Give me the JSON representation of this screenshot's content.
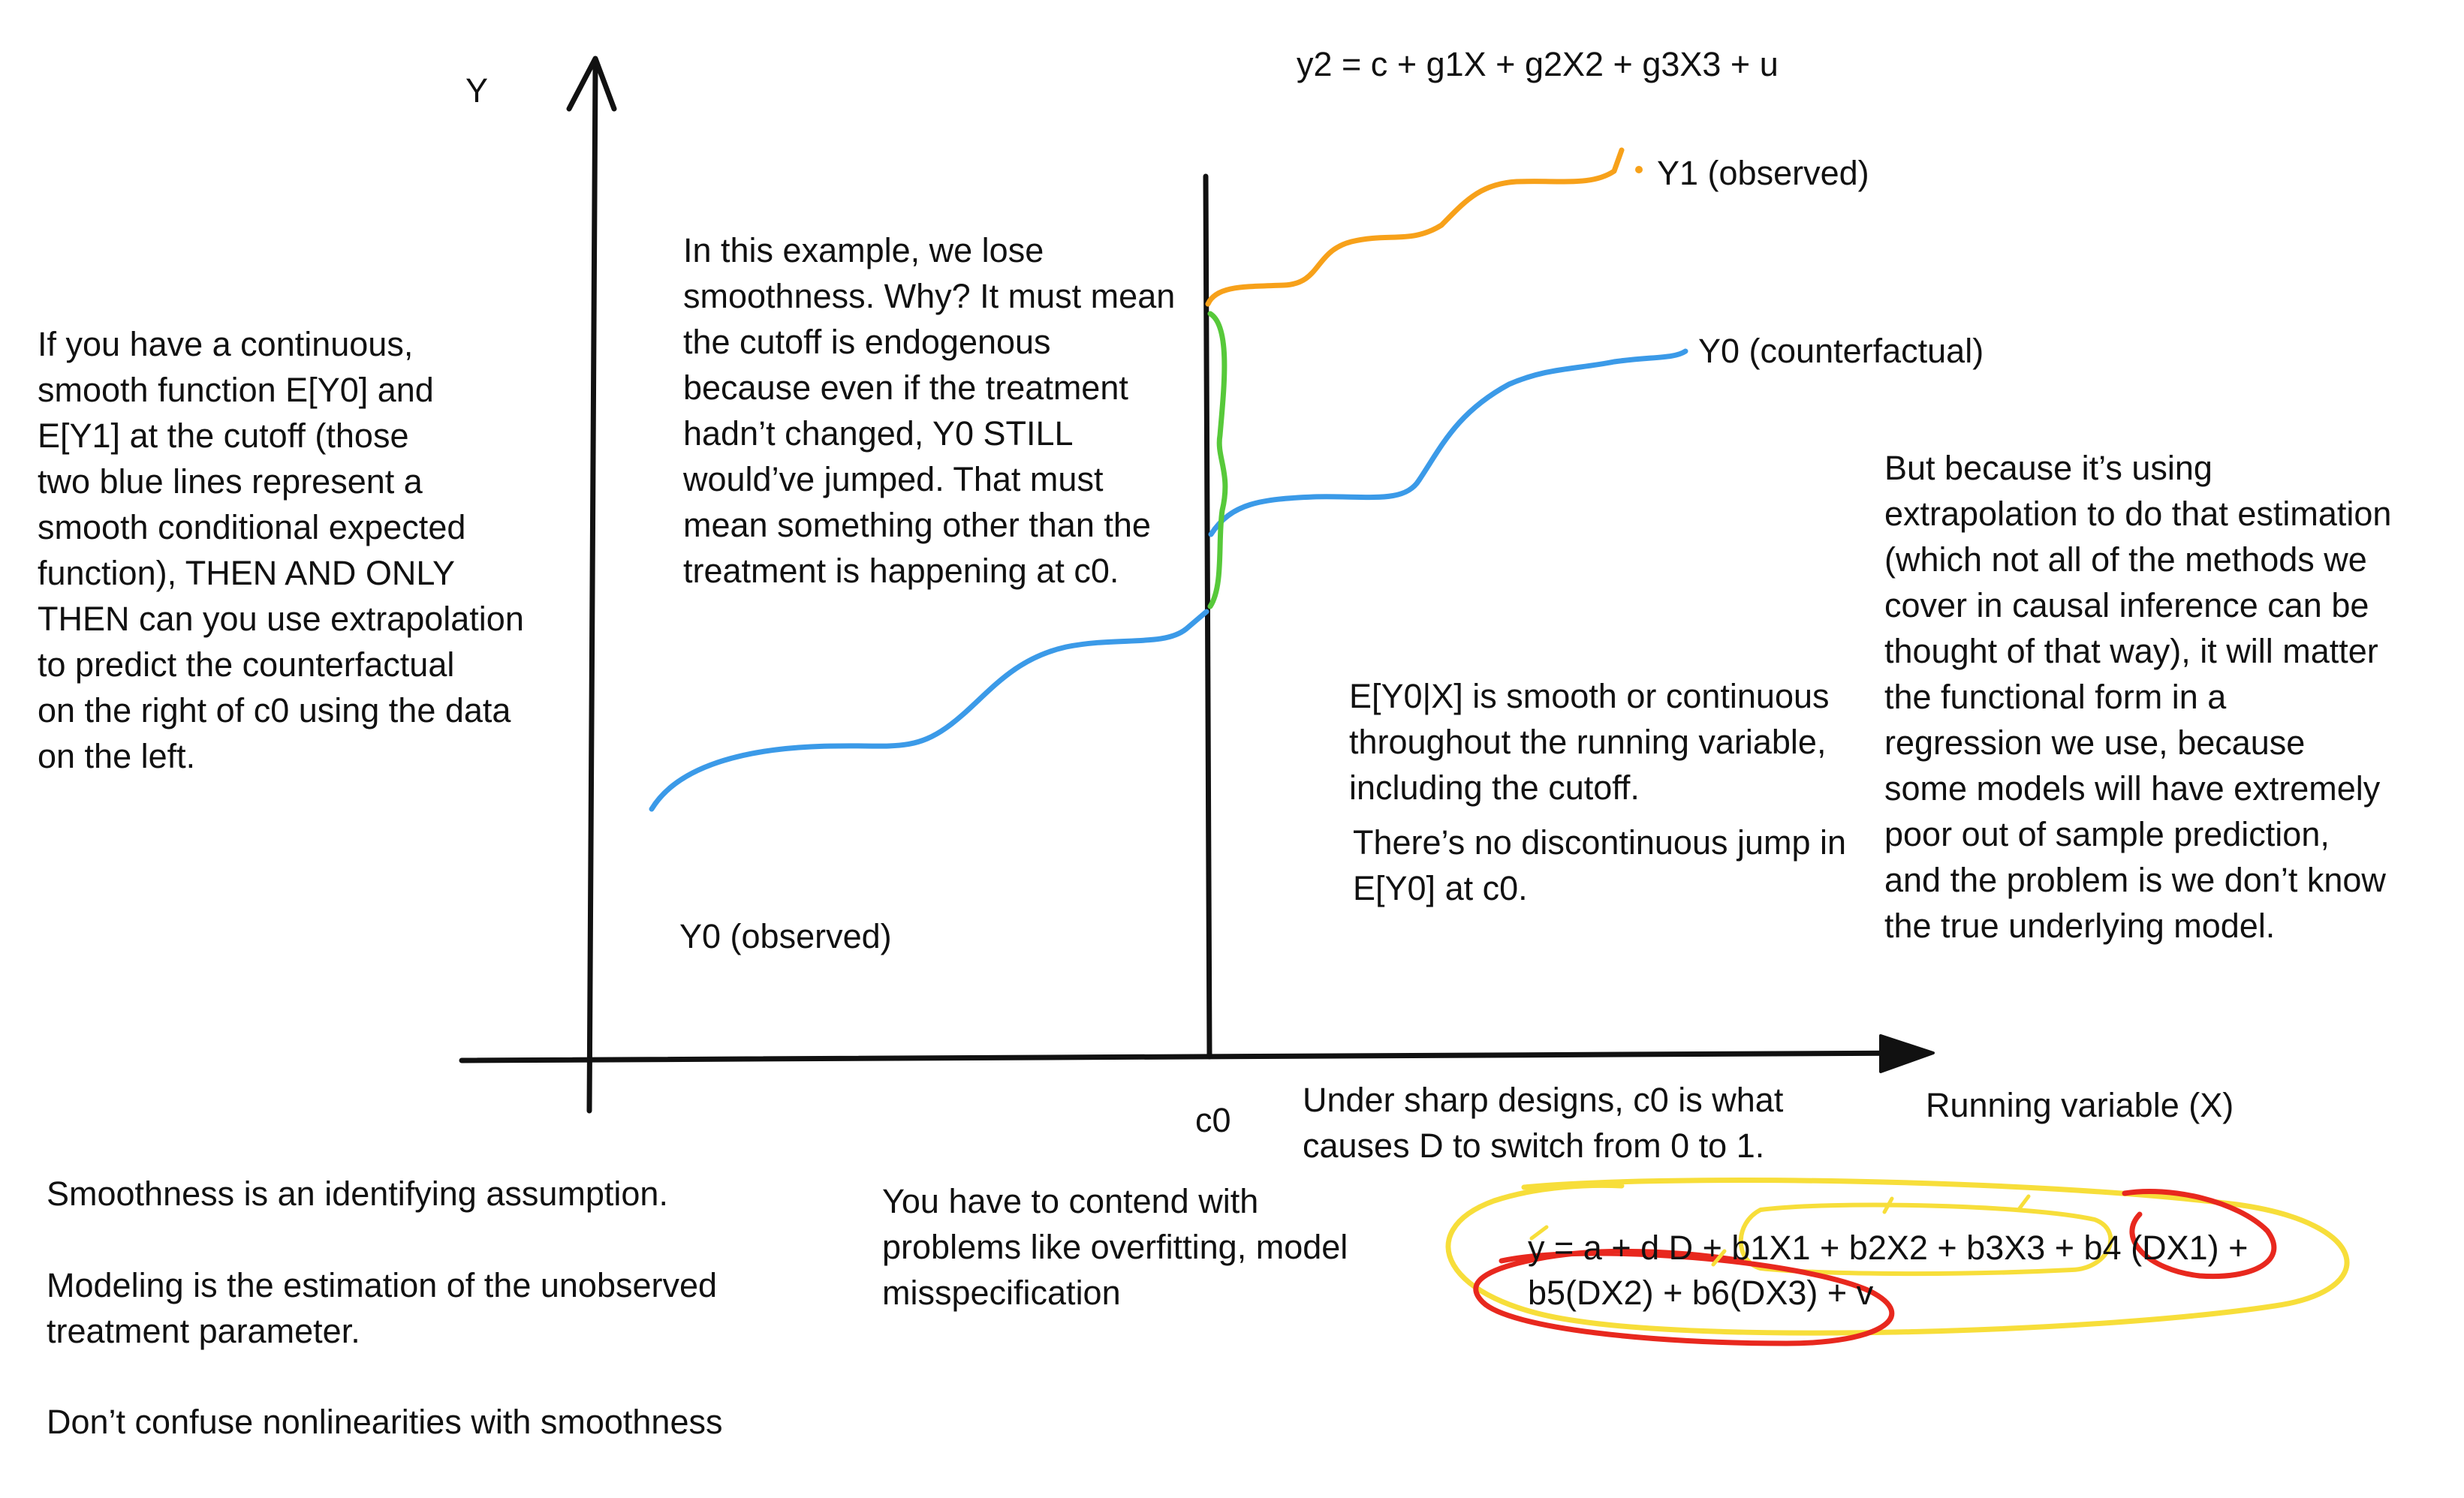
{
  "axes": {
    "y_label": "Y",
    "x_label": "Running variable (X)",
    "cutoff_label": "c0"
  },
  "equations": {
    "top": "y2 = c + g1X + g2X2 + g3X3 + u",
    "bottom_line1": "y = a + d D + b1X1 + b2X2 + b3X3 + b4 (DX1) +",
    "bottom_line2": "b5(DX2) + b6(DX3) + v"
  },
  "curve_labels": {
    "y1_observed": "Y1 (observed)",
    "y0_counterfactual": "Y0 (counterfactual)",
    "y0_observed": "Y0 (observed)"
  },
  "notes": {
    "left": [
      "If you have a continuous,",
      "smooth function E[Y0] and",
      "E[Y1] at the cutoff (those",
      "two blue lines represent a",
      "smooth conditional expected",
      "function), THEN AND ONLY",
      "THEN can you use extrapolation",
      "to predict the counterfactual",
      "on the right of c0 using the data",
      "on the left."
    ],
    "middle": [
      "In this example, we lose",
      "smoothness. Why?  It must mean",
      "the cutoff is endogenous",
      "because even if the treatment",
      "hadn’t changed, Y0 STILL",
      "would’ve jumped.  That must",
      "mean something other than the",
      "treatment is happening at c0."
    ],
    "smooth": [
      "E[Y0|X] is smooth or continuous",
      "throughout the running variable,",
      "including the cutoff."
    ],
    "no_jump": [
      "There’s no discontinuous jump in",
      "E[Y0] at c0."
    ],
    "right": [
      "But because it’s using",
      "extrapolation to do that estimation",
      "(which not all of the methods we",
      "cover in causal inference can be",
      "thought of that way), it will matter",
      "the functional form in a",
      "regression we use, because",
      "some models will have extremely",
      "poor out of sample prediction,",
      "and the problem is we don’t know",
      "the true underlying model."
    ],
    "sharp": [
      "Under sharp designs, c0 is what",
      "causes D to switch from 0 to 1."
    ],
    "contend": [
      "You have to contend with",
      "problems like overfitting, model",
      "misspecification"
    ],
    "bottom_left_1": "Smoothness is an identifying assumption.",
    "bottom_left_2": [
      "Modeling is the estimation of the unobserved",
      "treatment parameter."
    ],
    "bottom_left_3": "Don’t confuse nonlinearities with smoothness"
  },
  "colors": {
    "ink": "#111111",
    "blue": "#3b9ae8",
    "orange": "#f7a11a",
    "green": "#57c93a",
    "yellow": "#f7de3a",
    "red": "#e8281e"
  }
}
